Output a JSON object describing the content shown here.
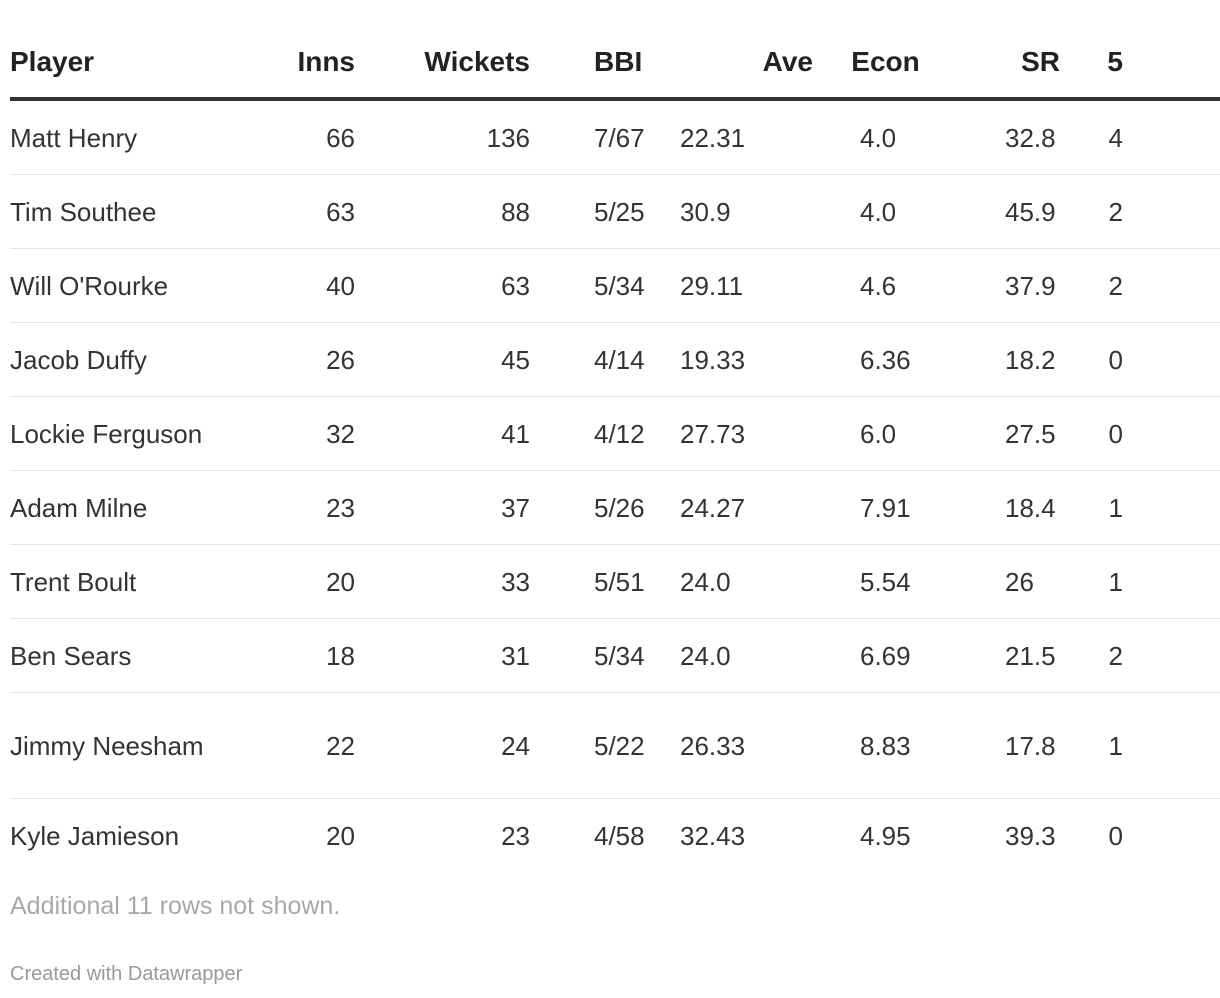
{
  "table": {
    "headers": {
      "player": "Player",
      "inns": "Inns",
      "wickets": "Wickets",
      "bbi": "BBI",
      "ave": "Ave",
      "econ": "Econ",
      "sr": "SR",
      "five": "5"
    },
    "rows": [
      {
        "player": "Matt Henry",
        "inns": "66",
        "wickets": "136",
        "bbi": "7/67",
        "ave": "22.31",
        "econ": "4.0",
        "sr": "32.8",
        "five": "4"
      },
      {
        "player": "Tim Southee",
        "inns": "63",
        "wickets": "88",
        "bbi": "5/25",
        "ave": "30.9",
        "econ": "4.0",
        "sr": "45.9",
        "five": "2"
      },
      {
        "player": "Will O'Rourke",
        "inns": "40",
        "wickets": "63",
        "bbi": "5/34",
        "ave": "29.11",
        "econ": "4.6",
        "sr": "37.9",
        "five": "2"
      },
      {
        "player": "Jacob Duffy",
        "inns": "26",
        "wickets": "45",
        "bbi": "4/14",
        "ave": "19.33",
        "econ": "6.36",
        "sr": "18.2",
        "five": "0"
      },
      {
        "player": "Lockie Ferguson",
        "inns": "32",
        "wickets": "41",
        "bbi": "4/12",
        "ave": "27.73",
        "econ": "6.0",
        "sr": "27.5",
        "five": "0"
      },
      {
        "player": "Adam Milne",
        "inns": "23",
        "wickets": "37",
        "bbi": "5/26",
        "ave": "24.27",
        "econ": "7.91",
        "sr": "18.4",
        "five": "1"
      },
      {
        "player": "Trent Boult",
        "inns": "20",
        "wickets": "33",
        "bbi": "5/51",
        "ave": "24.0",
        "econ": "5.54",
        "sr": "26",
        "five": "1"
      },
      {
        "player": "Ben Sears",
        "inns": "18",
        "wickets": "31",
        "bbi": "5/34",
        "ave": "24.0",
        "econ": "6.69",
        "sr": "21.5",
        "five": "2"
      },
      {
        "player": "Jimmy Neesham",
        "inns": "22",
        "wickets": "24",
        "bbi": "5/22",
        "ave": "26.33",
        "econ": "8.83",
        "sr": "17.8",
        "five": "1"
      },
      {
        "player": "Kyle Jamieson",
        "inns": "20",
        "wickets": "23",
        "bbi": "4/58",
        "ave": "32.43",
        "econ": "4.95",
        "sr": "39.3",
        "five": "0"
      }
    ]
  },
  "footer": {
    "notes": "Additional 11 rows not shown.",
    "credit": "Created with Datawrapper"
  }
}
